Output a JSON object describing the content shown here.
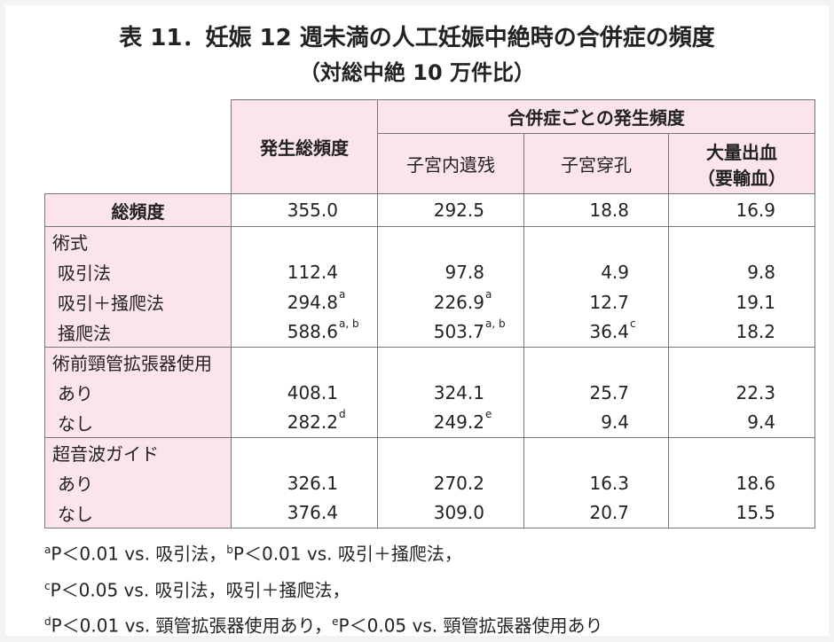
{
  "title": "表 11．妊娠 12 週未満の人工妊娠中絶時の合併症の頻度",
  "subtitle": "（対総中絶 10 万件比）",
  "table": {
    "header": {
      "total": "発生総頻度",
      "group": "合併症ごとの発生頻度",
      "columns": [
        [
          "子宮内遺残"
        ],
        [
          "子宮穿孔"
        ],
        [
          "大量出血",
          "（要輸血）"
        ]
      ]
    },
    "total_row": {
      "label": "総頻度",
      "values": [
        "355.0",
        "292.5",
        "18.8",
        "16.9"
      ]
    },
    "groups": [
      {
        "label": "術式",
        "rows": [
          {
            "label": "吸引法",
            "values": [
              "112.4",
              "97.8",
              "4.9",
              "9.8"
            ]
          },
          {
            "label": "吸引＋掻爬法",
            "values": [
              {
                "text": "294.8",
                "sup": "a"
              },
              {
                "text": "226.9",
                "sup": "a"
              },
              "12.7",
              "19.1"
            ]
          },
          {
            "label": "掻爬法",
            "values": [
              {
                "text": "588.6",
                "sup": "a, b"
              },
              {
                "text": "503.7",
                "sup": "a, b"
              },
              {
                "text": "36.4",
                "sup": "c"
              },
              "18.2"
            ]
          }
        ]
      },
      {
        "label": "術前頸管拡張器使用",
        "rows": [
          {
            "label": "あり",
            "values": [
              "408.1",
              "324.1",
              "25.7",
              "22.3"
            ]
          },
          {
            "label": "なし",
            "values": [
              {
                "text": "282.2",
                "sup": "d"
              },
              {
                "text": "249.2",
                "sup": "e"
              },
              "9.4",
              "9.4"
            ]
          }
        ]
      },
      {
        "label": "超音波ガイド",
        "rows": [
          {
            "label": "あり",
            "values": [
              "326.1",
              "270.2",
              "16.3",
              "18.6"
            ]
          },
          {
            "label": "なし",
            "values": [
              "376.4",
              "309.0",
              "20.7",
              "15.5"
            ]
          }
        ]
      }
    ]
  },
  "footnotes": [
    [
      {
        "sup": "a",
        "text": "P＜0.01 vs. 吸引法，"
      },
      {
        "sup": "b",
        "text": "P＜0.01 vs. 吸引＋掻爬法，"
      }
    ],
    [
      {
        "sup": "c",
        "text": "P＜0.05 vs. 吸引法，吸引＋掻爬法，"
      }
    ],
    [
      {
        "sup": "d",
        "text": "P＜0.01 vs. 頸管拡張器使用あり，"
      },
      {
        "sup": "e",
        "text": "P＜0.05 vs. 頸管拡張器使用あり"
      }
    ]
  ]
}
